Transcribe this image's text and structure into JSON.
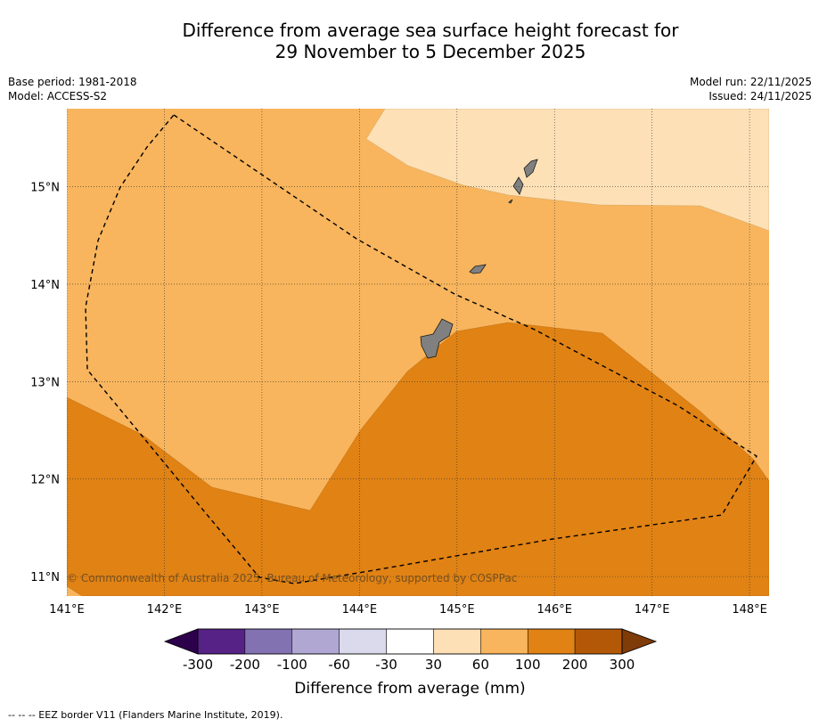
{
  "title_line1": "Difference from average sea surface height forecast for",
  "title_line2": "29 November to 5 December 2025",
  "base_period": "Base period: 1981-2018",
  "model": "Model: ACCESS-S2",
  "model_run": "Model run: 22/11/2025",
  "issued": "Issued: 24/11/2025",
  "copyright": "© Commonwealth of Australia 2025, Bureau of Meteorology, supported by COSPPac",
  "footnote": "--  --  -- EEZ border V11 (Flanders Marine Institute, 2019).",
  "map": {
    "lon_labels": [
      "141°E",
      "142°E",
      "143°E",
      "144°E",
      "145°E",
      "146°E",
      "147°E",
      "148°E"
    ],
    "lat_labels": [
      "15°N",
      "14°N",
      "13°N",
      "12°N",
      "11°N"
    ],
    "lon_range": [
      141,
      148.2
    ],
    "lat_range": [
      10.8,
      15.8
    ]
  },
  "colorbar": {
    "title": "Difference from average (mm)",
    "ticks": [
      "-300",
      "-200",
      "-100",
      "-60",
      "-30",
      "30",
      "60",
      "100",
      "200",
      "300"
    ],
    "colors": [
      "#562286",
      "#8272b1",
      "#b0a8d2",
      "#dadaec",
      "#ffffff",
      "#fde0b6",
      "#f8b55d",
      "#e08214",
      "#b35806"
    ],
    "under_color": "#2d004b",
    "over_color": "#7f3b08"
  },
  "legend_colors": {
    "band_30_60": "#fde0b6",
    "band_60_100": "#f8b55d",
    "band_100_200": "#e08214",
    "land": "#808080"
  }
}
